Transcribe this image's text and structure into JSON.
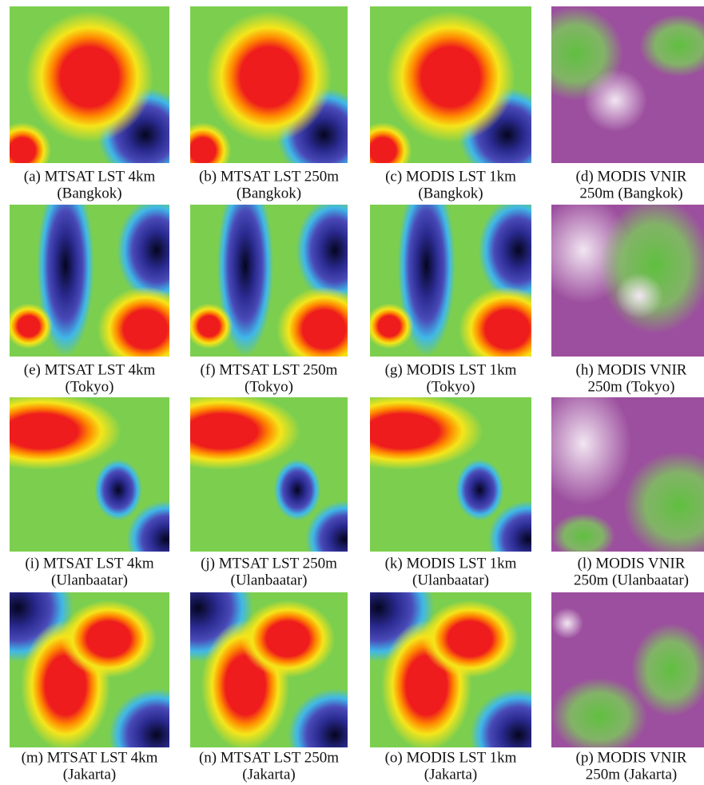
{
  "panels": [
    {
      "caption": [
        "(a) MTSAT LST 4km",
        "(Bangkok)"
      ]
    },
    {
      "caption": [
        "(b) MTSAT LST 250m",
        "(Bangkok)"
      ]
    },
    {
      "caption": [
        "(c) MODIS LST 1km",
        "(Bangkok)"
      ]
    },
    {
      "caption": [
        "(d) MODIS VNIR",
        "250m (Bangkok)"
      ]
    },
    {
      "caption": [
        "(e) MTSAT LST 4km",
        "(Tokyo)"
      ]
    },
    {
      "caption": [
        "(f) MTSAT LST 250m",
        "(Tokyo)"
      ]
    },
    {
      "caption": [
        "(g) MODIS LST 1km",
        "(Tokyo)"
      ]
    },
    {
      "caption": [
        "(h) MODIS VNIR",
        "250m (Tokyo)"
      ]
    },
    {
      "caption": [
        "(i) MTSAT LST 4km",
        "(Ulanbaatar)"
      ]
    },
    {
      "caption": [
        "(j) MTSAT LST 250m",
        "(Ulanbaatar)"
      ]
    },
    {
      "caption": [
        "(k) MODIS LST 1km",
        "(Ulanbaatar)"
      ]
    },
    {
      "caption": [
        "(l) MODIS VNIR",
        "250m (Ulanbaatar)"
      ]
    },
    {
      "caption": [
        "(m) MTSAT LST 4km",
        "(Jakarta)"
      ]
    },
    {
      "caption": [
        "(n) MTSAT LST 250m",
        "(Jakarta)"
      ]
    },
    {
      "caption": [
        "(o) MODIS LST 1km",
        "(Jakarta)"
      ]
    },
    {
      "caption": [
        "(p) MODIS VNIR",
        "250m (Jakarta)"
      ]
    }
  ]
}
